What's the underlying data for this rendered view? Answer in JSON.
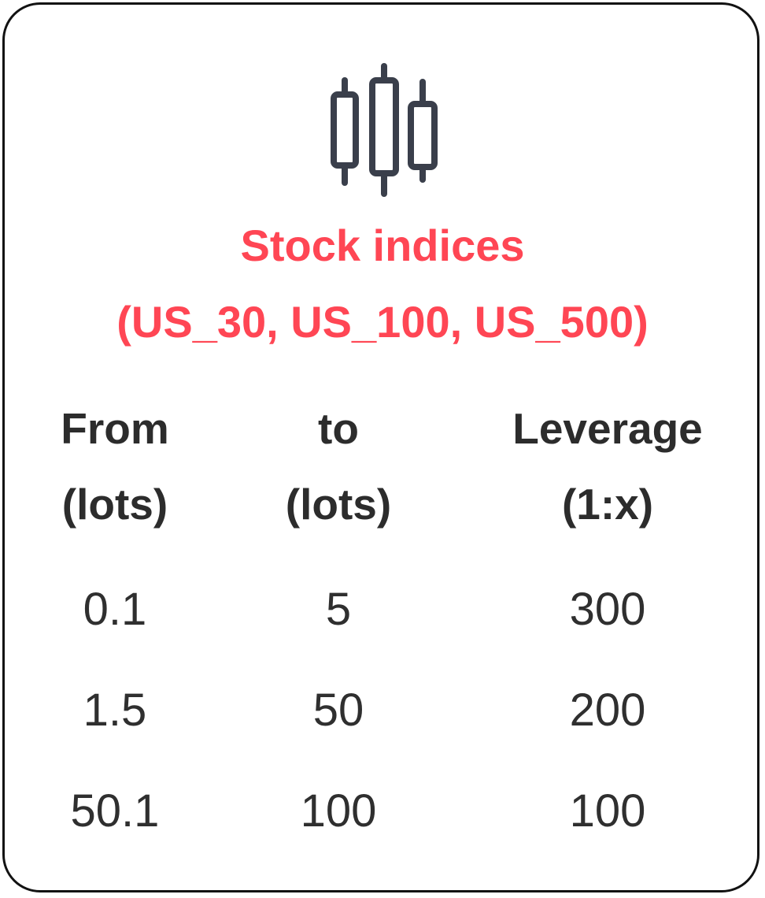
{
  "card": {
    "icon": "candlestick-chart-icon",
    "title_line1": "Stock indices",
    "title_line2": "(US_30, US_100, US_500)",
    "accent_color": "#ff4654",
    "text_color": "#2c2c2c"
  },
  "table": {
    "headers": [
      {
        "line1": "From",
        "line2": "(lots)"
      },
      {
        "line1": "to",
        "line2": "(lots)"
      },
      {
        "line1": "Leverage",
        "line2": "(1:x)"
      }
    ],
    "rows": [
      {
        "from": "0.1",
        "to": "5",
        "leverage": "300"
      },
      {
        "from": "1.5",
        "to": "50",
        "leverage": "200"
      },
      {
        "from": "50.1",
        "to": "100",
        "leverage": "100"
      }
    ]
  }
}
